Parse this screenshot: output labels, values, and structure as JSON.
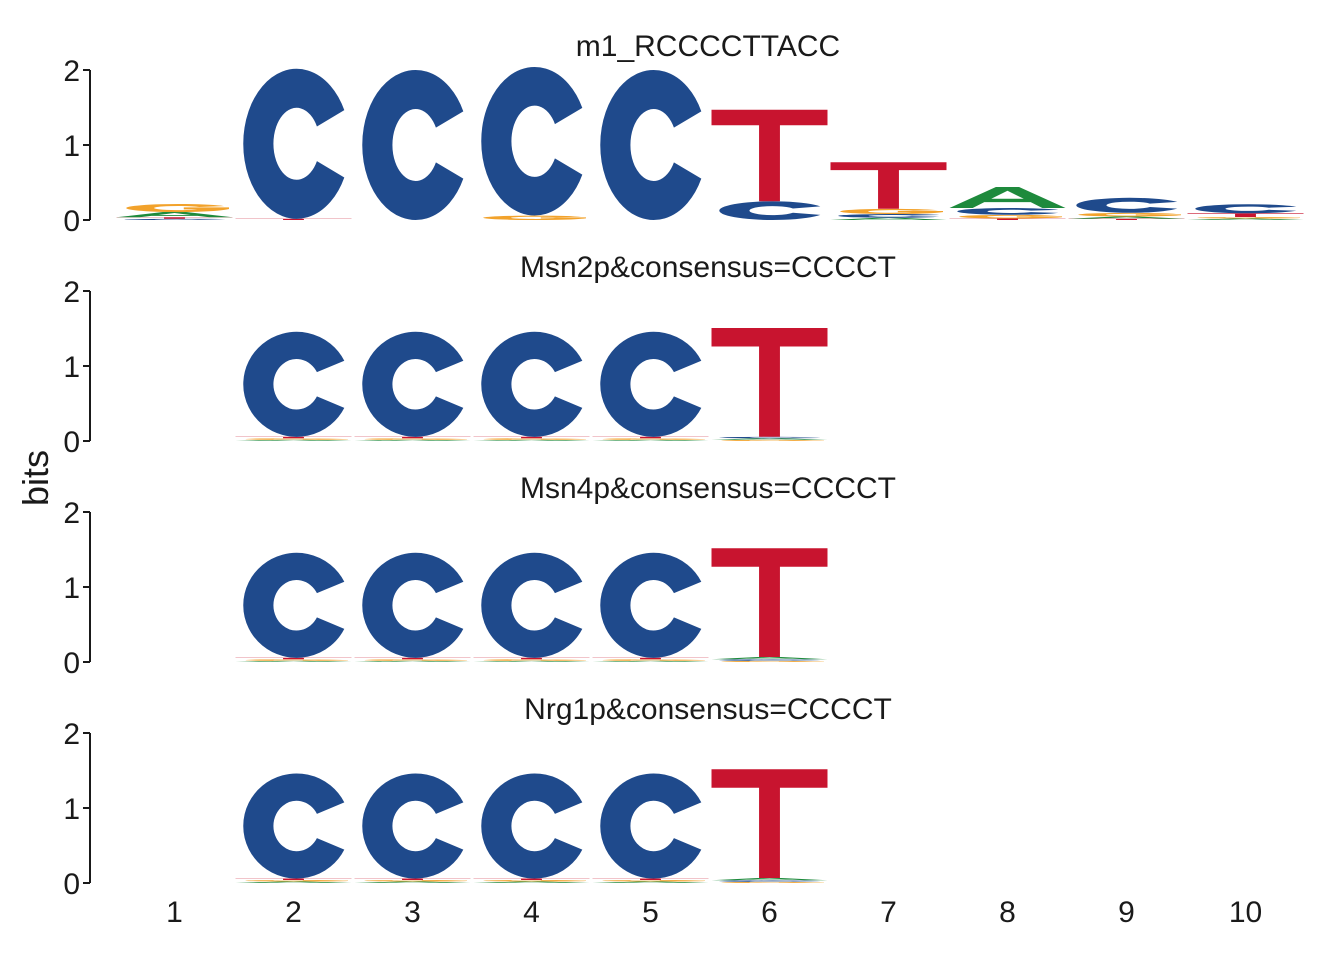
{
  "chart_data": {
    "type": "sequence-logo",
    "ylabel": "bits",
    "ylim": [
      0,
      2
    ],
    "y_ticks": [
      "0",
      "1",
      "2"
    ],
    "x_ticks": [
      "1",
      "2",
      "3",
      "4",
      "5",
      "6",
      "7",
      "8",
      "9",
      "10"
    ],
    "colors": {
      "A": "#1e8a3c",
      "C": "#1f4a8c",
      "G": "#f2a22b",
      "T": "#c8142f"
    },
    "panels": [
      {
        "title": "m1_RCCCCTTACC",
        "start": 1,
        "positions": [
          {
            "A": 0.07,
            "C": 0.01,
            "G": 0.11,
            "T": 0.02
          },
          {
            "A": 0.0,
            "C": 2.0,
            "G": 0.0,
            "T": 0.01
          },
          {
            "A": 0.0,
            "C": 2.0,
            "G": 0.0,
            "T": 0.0
          },
          {
            "A": 0.0,
            "C": 1.98,
            "G": 0.06,
            "T": 0.0
          },
          {
            "A": 0.0,
            "C": 2.0,
            "G": 0.0,
            "T": 0.0
          },
          {
            "A": 0.0,
            "C": 0.25,
            "G": 0.0,
            "T": 1.22
          },
          {
            "A": 0.03,
            "C": 0.05,
            "G": 0.07,
            "T": 0.62
          },
          {
            "A": 0.28,
            "C": 0.09,
            "G": 0.05,
            "T": 0.02
          },
          {
            "A": 0.03,
            "C": 0.2,
            "G": 0.05,
            "T": 0.01
          },
          {
            "A": 0.02,
            "C": 0.12,
            "G": 0.02,
            "T": 0.05
          }
        ]
      },
      {
        "title": "Msn2p&consensus=CCCCT",
        "start": 2,
        "positions": [
          {
            "A": 0.01,
            "C": 1.4,
            "G": 0.02,
            "T": 0.02
          },
          {
            "A": 0.01,
            "C": 1.4,
            "G": 0.02,
            "T": 0.02
          },
          {
            "A": 0.01,
            "C": 1.4,
            "G": 0.02,
            "T": 0.02
          },
          {
            "A": 0.01,
            "C": 1.4,
            "G": 0.02,
            "T": 0.02
          },
          {
            "A": 0.02,
            "C": 0.02,
            "G": 0.01,
            "T": 1.45
          }
        ]
      },
      {
        "title": "Msn4p&consensus=CCCCT",
        "start": 2,
        "positions": [
          {
            "A": 0.01,
            "C": 1.4,
            "G": 0.02,
            "T": 0.02
          },
          {
            "A": 0.01,
            "C": 1.4,
            "G": 0.02,
            "T": 0.02
          },
          {
            "A": 0.01,
            "C": 1.4,
            "G": 0.02,
            "T": 0.02
          },
          {
            "A": 0.01,
            "C": 1.4,
            "G": 0.02,
            "T": 0.02
          },
          {
            "A": 0.03,
            "C": 0.02,
            "G": 0.01,
            "T": 1.45
          }
        ]
      },
      {
        "title": "Nrg1p&consensus=CCCCT",
        "start": 2,
        "positions": [
          {
            "A": 0.02,
            "C": 1.4,
            "G": 0.02,
            "T": 0.02
          },
          {
            "A": 0.02,
            "C": 1.4,
            "G": 0.02,
            "T": 0.02
          },
          {
            "A": 0.02,
            "C": 1.4,
            "G": 0.02,
            "T": 0.02
          },
          {
            "A": 0.02,
            "C": 1.4,
            "G": 0.02,
            "T": 0.02
          },
          {
            "A": 0.03,
            "C": 0.02,
            "G": 0.01,
            "T": 1.45
          }
        ]
      }
    ]
  }
}
